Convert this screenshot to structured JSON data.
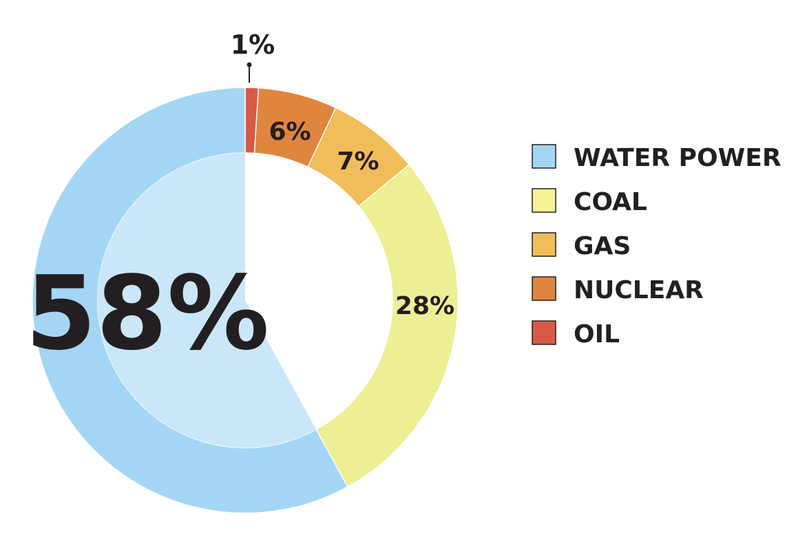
{
  "chart_data": {
    "type": "pie",
    "categories": [
      "WATER POWER",
      "COAL",
      "GAS",
      "NUCLEAR",
      "OIL"
    ],
    "values": [
      58,
      28,
      7,
      6,
      1
    ],
    "labels": [
      "58%",
      "28%",
      "7%",
      "6%",
      "1%"
    ],
    "colors": [
      "#a3d6f5",
      "#eeee92",
      "#f1bd59",
      "#e0853e",
      "#d85a45"
    ],
    "inner_highlight_color": "#c9e7f8",
    "legend_position": "right",
    "legend": [
      {
        "label": "WATER POWER",
        "color": "#a3d6f5"
      },
      {
        "label": "COAL",
        "color": "#f7f292"
      },
      {
        "label": "GAS",
        "color": "#f1bd59"
      },
      {
        "label": "NUCLEAR",
        "color": "#e0853e"
      },
      {
        "label": "OIL",
        "color": "#d85a45"
      }
    ]
  }
}
